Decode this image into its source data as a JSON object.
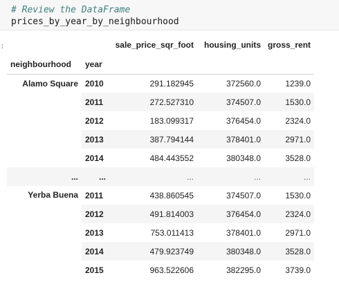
{
  "code": {
    "comment": "# Review the DataFrame",
    "expression": "prices_by_year_by_neighbourhood"
  },
  "output": {
    "prompt": ":",
    "columns": [
      "sale_price_sqr_foot",
      "housing_units",
      "gross_rent"
    ],
    "index_names": [
      "neighbourhood",
      "year"
    ],
    "groups": [
      {
        "neighbourhood": "Alamo Square",
        "rows": [
          {
            "year": "2010",
            "values": [
              "291.182945",
              "372560.0",
              "1239.0"
            ]
          },
          {
            "year": "2011",
            "values": [
              "272.527310",
              "374507.0",
              "1530.0"
            ]
          },
          {
            "year": "2012",
            "values": [
              "183.099317",
              "376454.0",
              "2324.0"
            ]
          },
          {
            "year": "2013",
            "values": [
              "387.794144",
              "378401.0",
              "2971.0"
            ]
          },
          {
            "year": "2014",
            "values": [
              "484.443552",
              "380348.0",
              "3528.0"
            ]
          }
        ]
      },
      {
        "neighbourhood": "...",
        "rows": [
          {
            "year": "...",
            "values": [
              "...",
              "...",
              "..."
            ]
          }
        ]
      },
      {
        "neighbourhood": "Yerba Buena",
        "rows": [
          {
            "year": "2011",
            "values": [
              "438.860545",
              "374507.0",
              "1530.0"
            ]
          },
          {
            "year": "2012",
            "values": [
              "491.814003",
              "376454.0",
              "2324.0"
            ]
          },
          {
            "year": "2013",
            "values": [
              "753.011413",
              "378401.0",
              "2971.0"
            ]
          },
          {
            "year": "2014",
            "values": [
              "479.923749",
              "380348.0",
              "3528.0"
            ]
          },
          {
            "year": "2015",
            "values": [
              "963.522606",
              "382295.0",
              "3739.0"
            ]
          }
        ]
      }
    ]
  }
}
